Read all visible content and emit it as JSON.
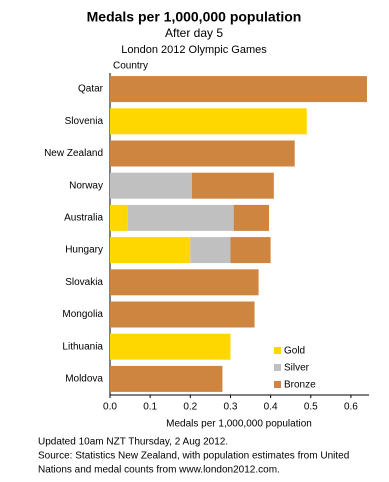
{
  "chart_data": {
    "type": "stacked-barh",
    "title": "Medals per 1,000,000 population",
    "subtitle": "After day 5",
    "subtitle2": "London 2012 Olympic Games",
    "y_label": "Country",
    "x_label": "Medals per 1,000,000 population",
    "categories": [
      "Qatar",
      "Slovenia",
      "New Zealand",
      "Norway",
      "Australia",
      "Hungary",
      "Slovakia",
      "Mongolia",
      "Lithuania",
      "Moldova"
    ],
    "series": [
      {
        "name": "Gold",
        "color": "#ffd700",
        "values": [
          0,
          0.49,
          0,
          0,
          0.044,
          0.2,
          0,
          0,
          0.3,
          0
        ]
      },
      {
        "name": "Silver",
        "color": "#c0c0c0",
        "values": [
          0,
          0,
          0,
          0.204,
          0.264,
          0.1,
          0,
          0,
          0,
          0
        ]
      },
      {
        "name": "Bronze",
        "color": "#cd853f",
        "values": [
          0.64,
          0,
          0.46,
          0.204,
          0.088,
          0.1,
          0.37,
          0.36,
          0,
          0.28
        ]
      }
    ],
    "xlim": [
      0,
      0.645
    ],
    "xticks": [
      {
        "value": 0,
        "label": "0.0"
      },
      0.1,
      0.2,
      0.3,
      0.4,
      0.5,
      0.6
    ],
    "legend": "lower right",
    "notes": [
      "Updated 10am NZT Thursday, 2 Aug 2012.",
      "Source: Statistics New Zealand, with population estimates from United",
      "Nations and medal counts from www.london2012.com."
    ]
  }
}
